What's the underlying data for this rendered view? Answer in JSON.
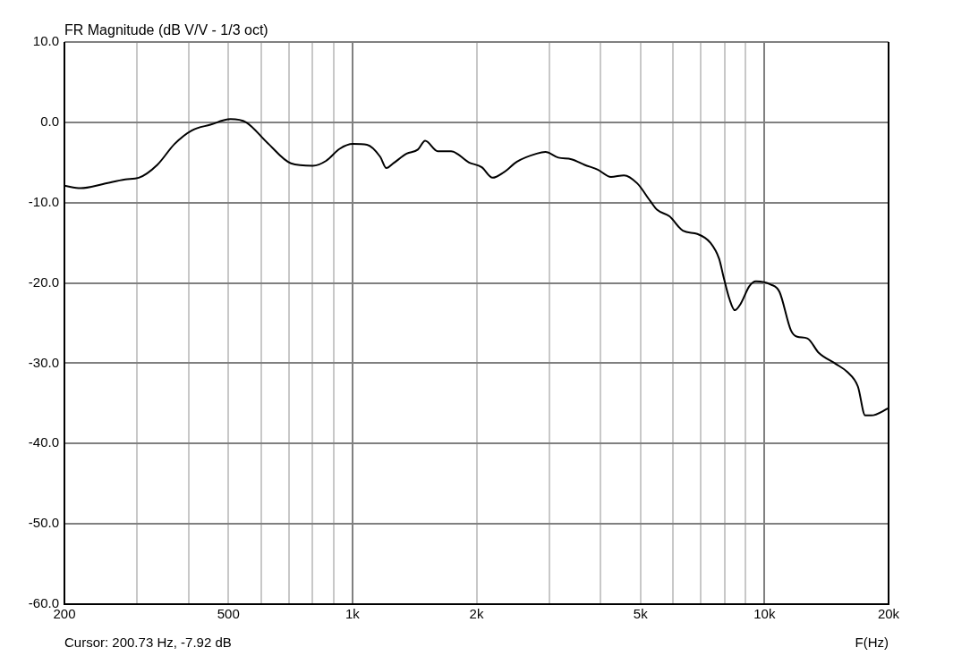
{
  "chart_data": {
    "type": "line",
    "title": "FR Magnitude (dB V/V - 1/3 oct)",
    "xlabel": "F(Hz)",
    "annotations": [
      "Cursor: 200.73 Hz, -7.92 dB"
    ],
    "log": "x",
    "grid": true,
    "legend": false,
    "marker": "none",
    "line_style": "solid",
    "xlim": [
      200,
      20000
    ],
    "xticks": [
      200,
      {
        "value": 300,
        "label": null
      },
      {
        "value": 400,
        "label": null
      },
      500,
      {
        "value": 600,
        "label": null
      },
      {
        "value": 700,
        "label": null
      },
      {
        "value": 800,
        "label": null
      },
      {
        "value": 900,
        "label": null
      },
      {
        "value": 1000,
        "label": "1k"
      },
      {
        "value": 2000,
        "label": "2k"
      },
      {
        "value": 3000,
        "label": null
      },
      {
        "value": 4000,
        "label": null
      },
      {
        "value": 5000,
        "label": "5k"
      },
      {
        "value": 6000,
        "label": null
      },
      {
        "value": 7000,
        "label": null
      },
      {
        "value": 8000,
        "label": null
      },
      {
        "value": 9000,
        "label": null
      },
      {
        "value": 10000,
        "label": "10k"
      },
      {
        "value": 20000,
        "label": "20k"
      }
    ],
    "ylim": [
      -60,
      10
    ],
    "yticks": [
      {
        "value": -60,
        "label": "-60.0"
      },
      {
        "value": -50,
        "label": "-50.0"
      },
      {
        "value": -40,
        "label": "-40.0"
      },
      {
        "value": -30,
        "label": "-30.0"
      },
      {
        "value": -20,
        "label": "-20.0"
      },
      {
        "value": -10,
        "label": "-10.0"
      },
      {
        "value": 0,
        "label": "0.0"
      },
      {
        "value": 10,
        "label": "10.0"
      }
    ],
    "series": [
      {
        "color": "#000000",
        "x": [
          200,
          219,
          248,
          281,
          303,
          336,
          370,
          408,
          452,
          506,
          552,
          623,
          709,
          801,
          863,
          931,
          1002,
          1085,
          1168,
          1209,
          1257,
          1354,
          1441,
          1501,
          1611,
          1735,
          1918,
          2060,
          2187,
          2332,
          2508,
          2800,
          2940,
          3160,
          3400,
          3660,
          3940,
          4240,
          4560,
          4910,
          5280,
          5490,
          5880,
          6340,
          6870,
          7390,
          7760,
          7950,
          8220,
          8470,
          8750,
          9190,
          9530,
          10350,
          10870,
          11590,
          12000,
          12700,
          13540,
          14910,
          15890,
          16850,
          17550,
          18160,
          20000
        ],
        "values": [
          -7.9,
          -8.2,
          -7.7,
          -7.1,
          -6.9,
          -5.3,
          -2.7,
          -1.0,
          -0.3,
          0.4,
          0,
          -2.6,
          -5.1,
          -5.4,
          -4.8,
          -3.3,
          -2.7,
          -2.8,
          -4.3,
          -5.7,
          -5.1,
          -3.9,
          -3.4,
          -2.3,
          -3.6,
          -3.6,
          -5.0,
          -5.6,
          -6.9,
          -6.2,
          -4.9,
          -3.9,
          -3.7,
          -4.4,
          -4.6,
          -5.3,
          -5.9,
          -6.8,
          -6.6,
          -7.6,
          -9.8,
          -10.9,
          -11.7,
          -13.5,
          -13.9,
          -15.0,
          -17.0,
          -19.2,
          -22.0,
          -23.4,
          -22.6,
          -20.4,
          -19.8,
          -20.2,
          -21.1,
          -25.9,
          -26.7,
          -26.9,
          -28.7,
          -30.1,
          -31.1,
          -32.9,
          -36.5,
          -36.5,
          -35.6
        ]
      }
    ]
  }
}
